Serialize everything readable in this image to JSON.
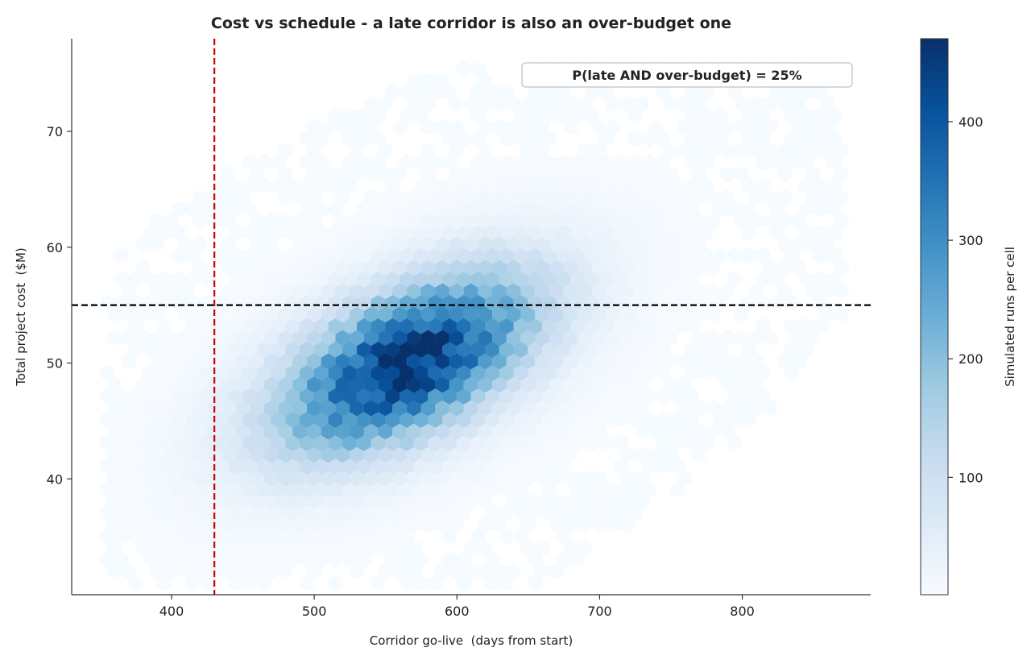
{
  "chart_data": {
    "type": "heatmap",
    "subtype": "hexbin",
    "title": "Cost vs schedule - a late corridor is also an over-budget one",
    "xlabel": "Corridor go-live  (days from start)",
    "ylabel": "Total project cost  ($M)",
    "xlim": [
      330,
      890
    ],
    "ylim": [
      30,
      78
    ],
    "xticks": [
      400,
      500,
      600,
      700,
      800
    ],
    "yticks": [
      40,
      50,
      60,
      70
    ],
    "grid": false,
    "colorbar": {
      "label": "Simulated runs per cell",
      "range": [
        1,
        470
      ],
      "ticks": [
        100,
        200,
        300,
        400
      ],
      "colormap": "Blues"
    },
    "distribution": {
      "center_x": 565,
      "center_y": 50,
      "sd_x": 62,
      "sd_y": 5.3,
      "correlation": 0.55,
      "peak_count": 465,
      "x_range": [
        350,
        870
      ],
      "y_range": [
        31,
        76
      ]
    },
    "reference_lines": [
      {
        "axis": "x",
        "value": 430,
        "color": "#cc0000",
        "style": "dashed"
      },
      {
        "axis": "y",
        "value": 55,
        "color": "#000000",
        "style": "dashed"
      }
    ],
    "annotation": {
      "text": "P(late AND over-budget) = 25%",
      "color": "#7a0000",
      "position": "top-right"
    }
  }
}
